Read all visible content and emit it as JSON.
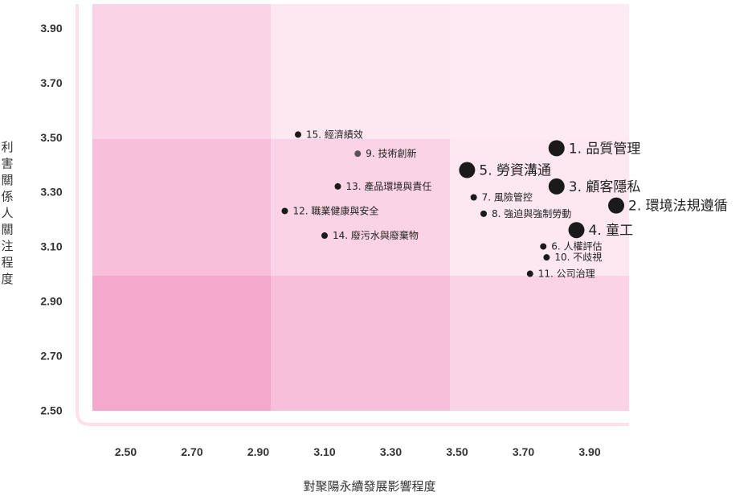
{
  "chart_data": {
    "type": "scatter",
    "title": "",
    "xlabel": "對聚陽永續發展影響程度",
    "ylabel": "利害關係人關注程度",
    "xlim": [
      2.4,
      4.0
    ],
    "ylim": [
      2.5,
      3.95
    ],
    "x_ticks": [
      "2.50",
      "2.70",
      "2.90",
      "3.10",
      "3.30",
      "3.50",
      "3.70",
      "3.90"
    ],
    "y_ticks": [
      "3.90",
      "3.70",
      "3.50",
      "3.30",
      "3.10",
      "2.90",
      "2.70",
      "2.50"
    ],
    "x_tick_values": [
      2.5,
      2.7,
      2.9,
      3.1,
      3.3,
      3.5,
      3.7,
      3.9
    ],
    "y_tick_values": [
      3.9,
      3.7,
      3.5,
      3.3,
      3.1,
      2.9,
      2.7,
      2.5
    ],
    "grid": false,
    "region_colors": [
      [
        "#fbd3e6",
        "#fde8f1",
        "#fdeaf2"
      ],
      [
        "#f7bfda",
        "#fbd3e6",
        "#fde8f1"
      ],
      [
        "#f4a9cc",
        "#f7bfda",
        "#fbd3e6"
      ]
    ],
    "frame_color": "#fde0ec",
    "points": [
      {
        "label": "1. 品質管理",
        "x": 3.8,
        "y": 3.46,
        "major": true
      },
      {
        "label": "2. 環境法規遵循",
        "x": 3.98,
        "y": 3.25,
        "major": true
      },
      {
        "label": "3. 顧客隱私",
        "x": 3.8,
        "y": 3.32,
        "major": true
      },
      {
        "label": "4. 童工",
        "x": 3.86,
        "y": 3.16,
        "major": true
      },
      {
        "label": "5. 勞資溝通",
        "x": 3.53,
        "y": 3.38,
        "major": true
      },
      {
        "label": "6. 人權評估",
        "x": 3.76,
        "y": 3.1,
        "major": false
      },
      {
        "label": "7. 風險管控",
        "x": 3.55,
        "y": 3.28,
        "major": false
      },
      {
        "label": "8. 強迫與強制勞動",
        "x": 3.58,
        "y": 3.22,
        "major": false
      },
      {
        "label": "9. 技術創新",
        "x": 3.2,
        "y": 3.44,
        "major": false,
        "color": "#555555"
      },
      {
        "label": "10. 不歧視",
        "x": 3.77,
        "y": 3.06,
        "major": false
      },
      {
        "label": "11. 公司治理",
        "x": 3.72,
        "y": 3.0,
        "major": false
      },
      {
        "label": "12. 職業健康與安全",
        "x": 2.98,
        "y": 3.23,
        "major": false
      },
      {
        "label": "13. 產品環境與責任",
        "x": 3.14,
        "y": 3.32,
        "major": false
      },
      {
        "label": "14. 廢污水與廢棄物",
        "x": 3.1,
        "y": 3.14,
        "major": false
      },
      {
        "label": "15. 經濟績效",
        "x": 3.02,
        "y": 3.51,
        "major": false
      }
    ]
  }
}
